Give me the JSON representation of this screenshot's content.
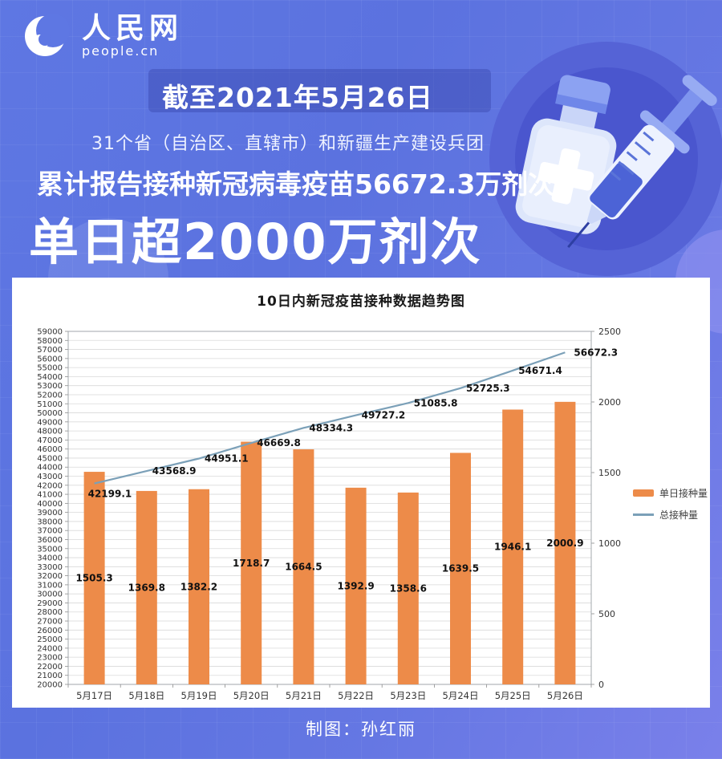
{
  "brand": {
    "logo_cn": "人民网",
    "logo_en": "people.cn"
  },
  "header": {
    "date_line": "截至2021年5月26日",
    "scope_line": "31个省（自治区、直辖市）和新疆生产建设兵团",
    "cumulative_line": "累计报告接种新冠病毒疫苗56672.3万剂次",
    "headline": "单日超2000万剂次"
  },
  "footer": {
    "credit": "制图：孙红丽"
  },
  "icons": {
    "logo": "peoplecn-crescent-logo",
    "illustration": "vaccine-vial-and-syringe"
  },
  "colors": {
    "background_blue": "#5B72DF",
    "badge_dark_blue": "#37439B",
    "illustration_circle": "#4A56CE",
    "panel_white": "#FFFFFF",
    "bar_orange": "#ED8B49",
    "line_steel_blue": "#7BA0B8",
    "grid_gray": "#D9D9D9",
    "chart_text": "#333333",
    "text_white": "#FFFFFF"
  },
  "chart_data": {
    "type": "bar",
    "subtype": "bar-line-combo",
    "title": "10日内新冠疫苗接种数据趋势图",
    "categories": [
      "5月17日",
      "5月18日",
      "5月19日",
      "5月20日",
      "5月21日",
      "5月22日",
      "5月23日",
      "5月24日",
      "5月25日",
      "5月26日"
    ],
    "series": [
      {
        "name": "单日接种量",
        "type": "bar",
        "axis": "right",
        "color": "#ED8B49",
        "values": [
          1505.3,
          1369.8,
          1382.2,
          1718.7,
          1664.5,
          1392.9,
          1358.6,
          1639.5,
          1946.1,
          2000.9
        ]
      },
      {
        "name": "总接种量",
        "type": "line",
        "axis": "left",
        "color": "#7BA0B8",
        "values": [
          42199.1,
          43568.9,
          44951.1,
          46669.8,
          48334.3,
          49727.2,
          51085.8,
          52725.3,
          54671.4,
          56672.3
        ]
      }
    ],
    "left_axis": {
      "min": 20000,
      "max": 59000,
      "step": 1000
    },
    "right_axis": {
      "min": 0,
      "max": 2500,
      "step": 500
    },
    "xlabel": "",
    "ylabel": "",
    "grid": true,
    "legend_position": "right",
    "data_labels": true
  }
}
